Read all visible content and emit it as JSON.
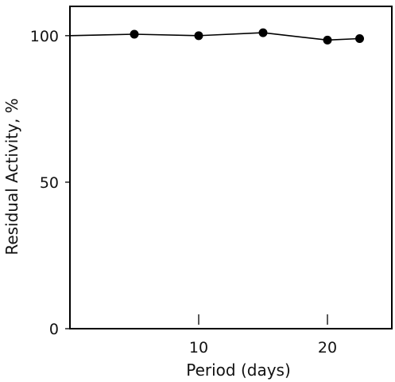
{
  "chart_data": {
    "type": "line",
    "title": "",
    "xlabel": "Period (days)",
    "ylabel": "Residual Activity, %",
    "xlim": [
      0,
      25
    ],
    "ylim": [
      0,
      110
    ],
    "x_ticks": [
      10,
      20
    ],
    "y_ticks": [
      0,
      50,
      100
    ],
    "grid": false,
    "legend": "none",
    "series": [
      {
        "line_start": {
          "x": 0,
          "y": 100
        },
        "x": [
          5,
          10,
          15,
          20,
          22.5
        ],
        "y": [
          100.5,
          100,
          101,
          98.5,
          99
        ],
        "color": "#000000"
      }
    ]
  }
}
